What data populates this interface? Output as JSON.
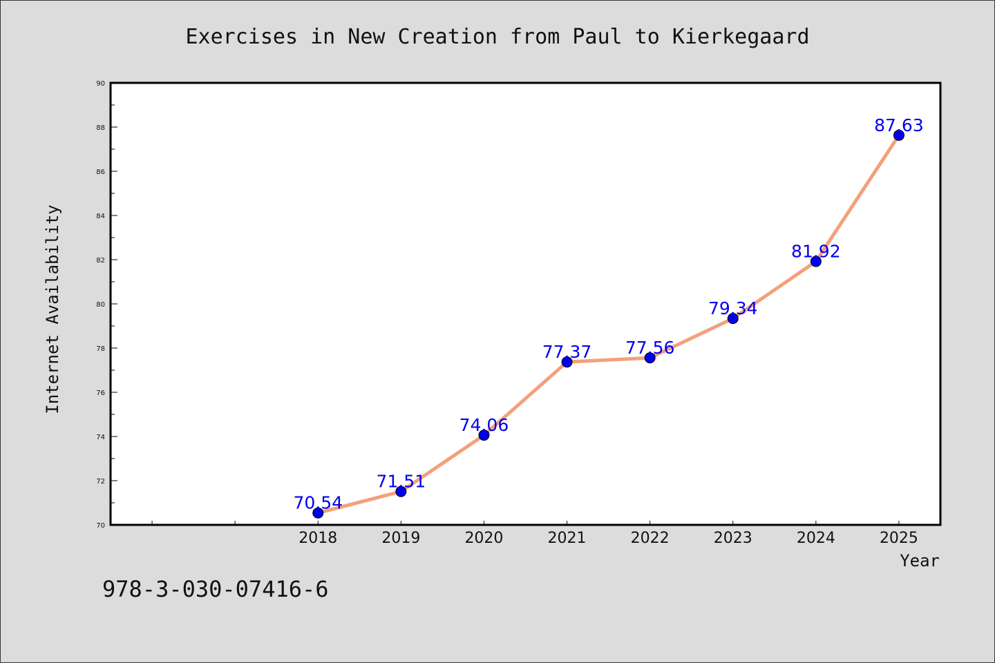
{
  "chart_data": {
    "type": "line",
    "title": "Exercises in New Creation from Paul to Kierkegaard",
    "xlabel": "Year",
    "ylabel": "Internet Availability",
    "x": [
      2018,
      2019,
      2020,
      2021,
      2022,
      2023,
      2024,
      2025
    ],
    "x_tick_labels": [
      "2018",
      "2019",
      "2020",
      "2021",
      "2022",
      "2023",
      "2024",
      "2025"
    ],
    "xlim": [
      2015.5,
      2025.5
    ],
    "series": [
      {
        "values": [
          70.54,
          71.51,
          74.06,
          77.37,
          77.56,
          79.34,
          81.92,
          87.63
        ],
        "labels": [
          "70.54",
          "71.51",
          "74.06",
          "77.37",
          "77.56",
          "79.34",
          "81.92",
          "87.63"
        ]
      }
    ],
    "ylim": [
      70,
      90
    ],
    "y_tick_labels": [
      "70",
      "72",
      "74",
      "76",
      "78",
      "80",
      "82",
      "84",
      "86",
      "88",
      "90"
    ],
    "grid": false,
    "line_color": "#f4a07c",
    "marker_color": "#0000ee"
  },
  "footer": {
    "isbn": "978-3-030-07416-6"
  }
}
